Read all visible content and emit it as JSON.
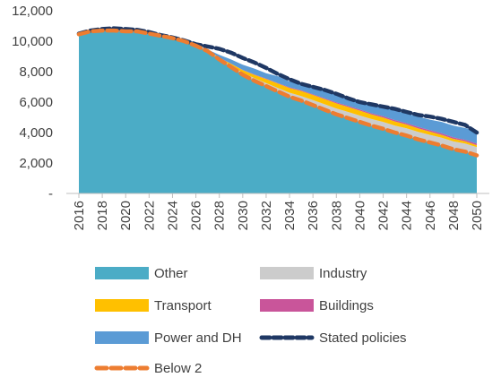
{
  "chart_data": {
    "type": "area",
    "x": [
      2016,
      2017,
      2018,
      2019,
      2020,
      2021,
      2022,
      2023,
      2024,
      2025,
      2026,
      2027,
      2028,
      2029,
      2030,
      2031,
      2032,
      2033,
      2034,
      2035,
      2036,
      2037,
      2038,
      2039,
      2040,
      2041,
      2042,
      2043,
      2044,
      2045,
      2046,
      2047,
      2048,
      2049,
      2050
    ],
    "x_tick_labels": [
      "2016",
      "2018",
      "2020",
      "2022",
      "2024",
      "2026",
      "2028",
      "2030",
      "2032",
      "2034",
      "2036",
      "2038",
      "2040",
      "2042",
      "2044",
      "2046",
      "2048",
      "2050"
    ],
    "y_tick_labels": [
      "-",
      "2,000",
      "4,000",
      "6,000",
      "8,000",
      "10,000",
      "12,000"
    ],
    "ylim": [
      0,
      12000
    ],
    "stacked_areas": [
      {
        "name": "Other",
        "color": "#4bacc6",
        "values": [
          10450,
          10650,
          10700,
          10700,
          10650,
          10650,
          10500,
          10350,
          10200,
          10000,
          9700,
          9350,
          8800,
          8300,
          7800,
          7400,
          7050,
          6700,
          6350,
          6100,
          5800,
          5500,
          5200,
          4950,
          4700,
          4450,
          4250,
          4000,
          3800,
          3550,
          3350,
          3150,
          2900,
          2750,
          2500
        ]
      },
      {
        "name": "Industry",
        "color": "#cccccc",
        "values": [
          0,
          0,
          0,
          0,
          0,
          0,
          0,
          0,
          0,
          0,
          0,
          20,
          50,
          90,
          130,
          170,
          200,
          230,
          270,
          300,
          330,
          360,
          380,
          400,
          420,
          440,
          450,
          460,
          480,
          490,
          500,
          510,
          520,
          530,
          540
        ]
      },
      {
        "name": "Transport",
        "color": "#ffc000",
        "values": [
          0,
          0,
          0,
          0,
          0,
          0,
          0,
          0,
          0,
          0,
          0,
          30,
          70,
          120,
          170,
          220,
          260,
          290,
          310,
          330,
          340,
          340,
          340,
          330,
          320,
          300,
          290,
          270,
          250,
          230,
          210,
          190,
          170,
          150,
          130
        ]
      },
      {
        "name": "Buildings",
        "color": "#c9559a",
        "values": [
          0,
          0,
          0,
          0,
          0,
          0,
          0,
          0,
          0,
          0,
          0,
          5,
          10,
          15,
          20,
          25,
          30,
          35,
          40,
          45,
          50,
          55,
          60,
          65,
          70,
          75,
          80,
          85,
          90,
          95,
          95,
          95,
          95,
          95,
          100
        ]
      },
      {
        "name": "Power and DH",
        "color": "#5b9bd5",
        "values": [
          0,
          0,
          0,
          0,
          0,
          0,
          0,
          0,
          0,
          0,
          0,
          45,
          170,
          275,
          330,
          385,
          360,
          445,
          390,
          475,
          480,
          495,
          520,
          605,
          590,
          635,
          630,
          635,
          630,
          685,
          695,
          755,
          765,
          775,
          830
        ]
      }
    ],
    "lines": [
      {
        "name": "Stated policies",
        "color": "#1f3864",
        "dash": "dotted",
        "values": [
          10500,
          10700,
          10800,
          10850,
          10800,
          10750,
          10600,
          10400,
          10250,
          10050,
          9800,
          9650,
          9500,
          9250,
          8900,
          8600,
          8250,
          7850,
          7500,
          7200,
          7000,
          6800,
          6550,
          6250,
          6000,
          5850,
          5700,
          5550,
          5350,
          5150,
          5050,
          4900,
          4700,
          4500,
          4000
        ]
      },
      {
        "name": "Below 2",
        "color": "#ed7d31",
        "dash": "dashed",
        "values": [
          10450,
          10650,
          10700,
          10700,
          10650,
          10650,
          10500,
          10350,
          10200,
          10000,
          9700,
          9350,
          8800,
          8300,
          7800,
          7400,
          7050,
          6700,
          6350,
          6100,
          5800,
          5500,
          5200,
          4950,
          4700,
          4450,
          4250,
          4000,
          3800,
          3550,
          3350,
          3150,
          2900,
          2750,
          2500
        ]
      }
    ],
    "legend_order": [
      "Other",
      "Industry",
      "Transport",
      "Buildings",
      "Power and DH",
      "Stated policies",
      "Below 2"
    ],
    "legend": "bottom",
    "grid": false
  }
}
